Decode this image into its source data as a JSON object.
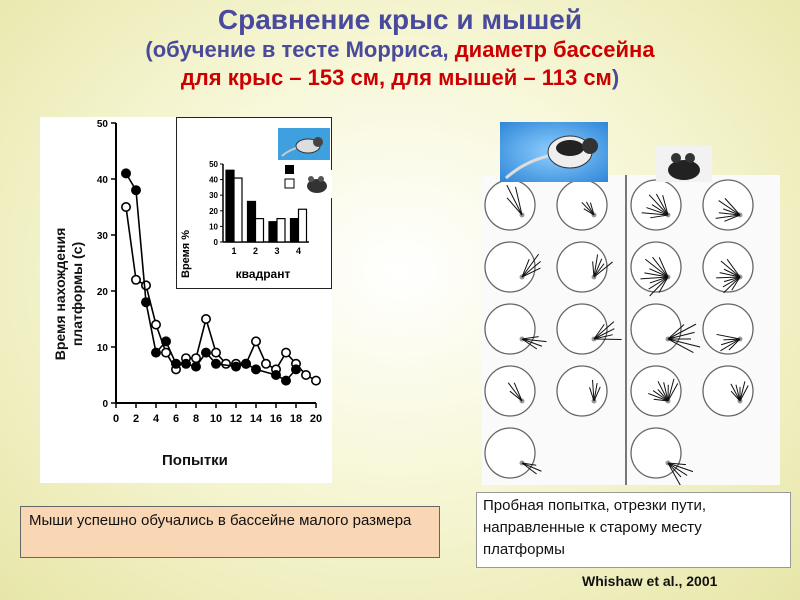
{
  "slide": {
    "title": "Сравнение крыс и мышей",
    "subtitle_part1": "(обучение в тесте Морриса, ",
    "subtitle_part2": "диаметр бассейна",
    "subtitle_line2": "для крыс – 153 см, для мышей – 113 см",
    "subtitle_close": ")",
    "left_box_text": " Мыши успешно обучались в бассейне малого размера",
    "right_caption": "Пробная попытка, отрезки пути, направленные к старому месту платформы",
    "reference": "Whishaw et al., 2001",
    "colors": {
      "title": "#4a4a9c",
      "highlight": "#cc0000",
      "box_fill": "#f9d6b4"
    },
    "icons": [
      "rat-photo",
      "mouse-photo",
      "rat-icon",
      "mouse-icon"
    ]
  },
  "chart_data": [
    {
      "type": "line",
      "xlabel": "Попытки",
      "ylabel": "Время нахождения платформы (с)",
      "xlim": [
        0,
        20
      ],
      "ylim": [
        0,
        50
      ],
      "x_ticks": [
        "0",
        "2",
        "4",
        "6",
        "8",
        "10",
        "12",
        "14",
        "16",
        "18",
        "20"
      ],
      "y_ticks": [
        "0",
        "10",
        "20",
        "30",
        "40",
        "50"
      ],
      "x": [
        1,
        2,
        3,
        4,
        5,
        6,
        7,
        8,
        9,
        10,
        11,
        12,
        13,
        14,
        15,
        16,
        17,
        18,
        19,
        20
      ],
      "series": [
        {
          "marker": "filled",
          "values": [
            41,
            38,
            18,
            9,
            11,
            7,
            7,
            6.5,
            9,
            7,
            null,
            6.5,
            7,
            6,
            null,
            5,
            4,
            6,
            null,
            null
          ]
        },
        {
          "marker": "open",
          "values": [
            35,
            22,
            21,
            14,
            9,
            6,
            8,
            8,
            15,
            9,
            7,
            7,
            7,
            11,
            7,
            6,
            9,
            7,
            5,
            4
          ]
        }
      ]
    },
    {
      "type": "bar",
      "ylabel": "Время %",
      "xlabel": "квадрант",
      "categories": [
        "1",
        "2",
        "3",
        "4"
      ],
      "ylim": [
        0,
        50
      ],
      "y_ticks": [
        "0",
        "10",
        "20",
        "30",
        "40",
        "50"
      ],
      "series": [
        {
          "marker": "filled",
          "values": [
            46,
            26,
            13,
            15
          ]
        },
        {
          "marker": "open",
          "values": [
            41,
            15,
            15,
            21
          ]
        }
      ]
    }
  ],
  "path_panel": {
    "rows": [
      [
        {
          "a": 70,
          "len": 38,
          "n": 3
        },
        {
          "a": 60,
          "len": 20,
          "n": 4
        },
        {
          "a": 40,
          "len": 30,
          "n": 7
        },
        {
          "a": 20,
          "len": 28,
          "n": 6
        }
      ],
      [
        {
          "a": 140,
          "len": 32,
          "n": 4
        },
        {
          "a": 120,
          "len": 26,
          "n": 5
        },
        {
          "a": 10,
          "len": 30,
          "n": 10
        },
        {
          "a": 5,
          "len": 26,
          "n": 9
        }
      ],
      [
        {
          "a": 200,
          "len": 28,
          "n": 4
        },
        {
          "a": 160,
          "len": 30,
          "n": 5
        },
        {
          "a": 180,
          "len": 36,
          "n": 6
        },
        {
          "a": 350,
          "len": 26,
          "n": 5
        }
      ],
      [
        {
          "a": 60,
          "len": 26,
          "n": 3
        },
        {
          "a": 100,
          "len": 24,
          "n": 4
        },
        {
          "a": 70,
          "len": 24,
          "n": 9
        },
        {
          "a": 90,
          "len": 22,
          "n": 6
        }
      ],
      [
        {
          "a": 210,
          "len": 24,
          "n": 3
        },
        null,
        {
          "a": 220,
          "len": 30,
          "n": 5
        },
        null
      ]
    ]
  }
}
